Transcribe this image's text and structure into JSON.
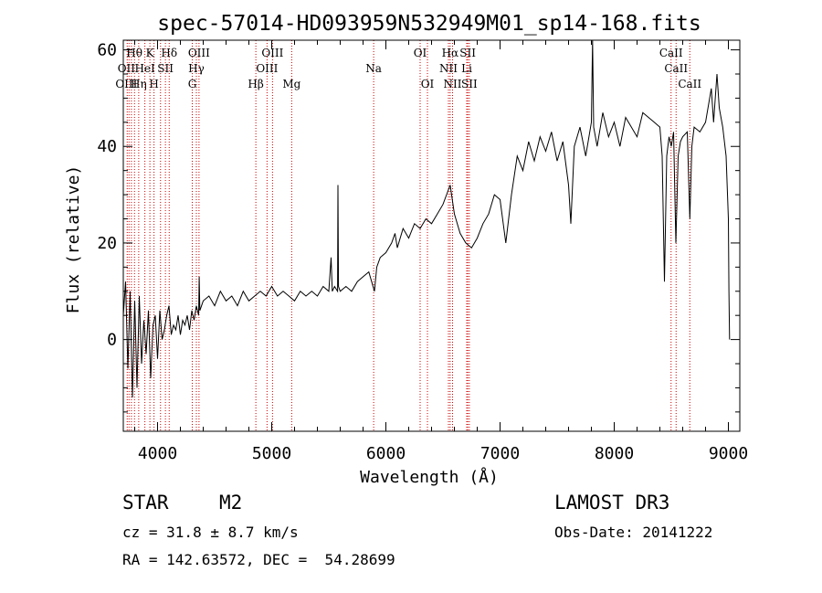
{
  "chart_data": {
    "type": "line",
    "title": "spec-57014-HD093959N532949M01_sp14-168.fits",
    "xlabel": "Wavelength (Å)",
    "ylabel": "Flux (relative)",
    "xlim": [
      3700,
      9100
    ],
    "ylim": [
      -19,
      62
    ],
    "xticks": [
      4000,
      5000,
      6000,
      7000,
      8000,
      9000
    ],
    "xtick_labels": [
      "4000",
      "5000",
      "6000",
      "7000",
      "8000",
      "9000"
    ],
    "yticks": [
      0,
      20,
      40,
      60
    ],
    "ytick_labels": [
      "0",
      "20",
      "40",
      "60"
    ],
    "series": [
      {
        "name": "flux",
        "color": "#000000",
        "points": [
          [
            3700,
            5
          ],
          [
            3720,
            12
          ],
          [
            3740,
            -6
          ],
          [
            3760,
            10
          ],
          [
            3780,
            -12
          ],
          [
            3800,
            8
          ],
          [
            3820,
            -10
          ],
          [
            3840,
            9
          ],
          [
            3860,
            -5
          ],
          [
            3880,
            4
          ],
          [
            3900,
            -3
          ],
          [
            3920,
            6
          ],
          [
            3940,
            -8
          ],
          [
            3960,
            3
          ],
          [
            3980,
            5
          ],
          [
            4000,
            -4
          ],
          [
            4020,
            6
          ],
          [
            4040,
            0
          ],
          [
            4060,
            2
          ],
          [
            4080,
            5
          ],
          [
            4100,
            7
          ],
          [
            4120,
            1
          ],
          [
            4140,
            3
          ],
          [
            4160,
            2
          ],
          [
            4180,
            5
          ],
          [
            4200,
            1
          ],
          [
            4220,
            4
          ],
          [
            4240,
            3
          ],
          [
            4260,
            5
          ],
          [
            4280,
            2
          ],
          [
            4300,
            6
          ],
          [
            4320,
            4
          ],
          [
            4340,
            7
          ],
          [
            4360,
            5
          ],
          [
            4365,
            13
          ],
          [
            4370,
            6
          ],
          [
            4400,
            8
          ],
          [
            4450,
            9
          ],
          [
            4500,
            7
          ],
          [
            4550,
            10
          ],
          [
            4600,
            8
          ],
          [
            4650,
            9
          ],
          [
            4700,
            7
          ],
          [
            4750,
            10
          ],
          [
            4800,
            8
          ],
          [
            4850,
            9
          ],
          [
            4900,
            10
          ],
          [
            4950,
            9
          ],
          [
            5000,
            11
          ],
          [
            5050,
            9
          ],
          [
            5100,
            10
          ],
          [
            5150,
            9
          ],
          [
            5200,
            8
          ],
          [
            5250,
            10
          ],
          [
            5300,
            9
          ],
          [
            5350,
            10
          ],
          [
            5400,
            9
          ],
          [
            5450,
            11
          ],
          [
            5500,
            10
          ],
          [
            5520,
            17
          ],
          [
            5530,
            10
          ],
          [
            5550,
            11
          ],
          [
            5577,
            10
          ],
          [
            5580,
            32
          ],
          [
            5585,
            11
          ],
          [
            5600,
            10
          ],
          [
            5650,
            11
          ],
          [
            5700,
            10
          ],
          [
            5750,
            12
          ],
          [
            5800,
            13
          ],
          [
            5850,
            14
          ],
          [
            5900,
            10
          ],
          [
            5920,
            15
          ],
          [
            5950,
            17
          ],
          [
            6000,
            18
          ],
          [
            6050,
            20
          ],
          [
            6080,
            22
          ],
          [
            6100,
            19
          ],
          [
            6150,
            23
          ],
          [
            6200,
            21
          ],
          [
            6250,
            24
          ],
          [
            6300,
            23
          ],
          [
            6350,
            25
          ],
          [
            6400,
            24
          ],
          [
            6450,
            26
          ],
          [
            6500,
            28
          ],
          [
            6563,
            32
          ],
          [
            6600,
            26
          ],
          [
            6650,
            22
          ],
          [
            6700,
            20
          ],
          [
            6750,
            19
          ],
          [
            6800,
            21
          ],
          [
            6850,
            24
          ],
          [
            6900,
            26
          ],
          [
            6950,
            30
          ],
          [
            7000,
            29
          ],
          [
            7050,
            20
          ],
          [
            7100,
            30
          ],
          [
            7150,
            38
          ],
          [
            7200,
            35
          ],
          [
            7250,
            41
          ],
          [
            7300,
            37
          ],
          [
            7350,
            42
          ],
          [
            7400,
            39
          ],
          [
            7450,
            43
          ],
          [
            7500,
            37
          ],
          [
            7550,
            41
          ],
          [
            7600,
            32
          ],
          [
            7620,
            24
          ],
          [
            7650,
            40
          ],
          [
            7700,
            44
          ],
          [
            7750,
            38
          ],
          [
            7800,
            45
          ],
          [
            7810,
            62
          ],
          [
            7820,
            44
          ],
          [
            7850,
            40
          ],
          [
            7900,
            47
          ],
          [
            7950,
            42
          ],
          [
            8000,
            45
          ],
          [
            8050,
            40
          ],
          [
            8100,
            46
          ],
          [
            8150,
            44
          ],
          [
            8200,
            42
          ],
          [
            8250,
            47
          ],
          [
            8300,
            46
          ],
          [
            8350,
            45
          ],
          [
            8400,
            44
          ],
          [
            8420,
            38
          ],
          [
            8440,
            12
          ],
          [
            8460,
            38
          ],
          [
            8480,
            42
          ],
          [
            8500,
            40
          ],
          [
            8520,
            43
          ],
          [
            8540,
            20
          ],
          [
            8560,
            38
          ],
          [
            8580,
            41
          ],
          [
            8600,
            42
          ],
          [
            8640,
            43
          ],
          [
            8662,
            25
          ],
          [
            8680,
            40
          ],
          [
            8700,
            44
          ],
          [
            8750,
            43
          ],
          [
            8800,
            45
          ],
          [
            8850,
            52
          ],
          [
            8870,
            45
          ],
          [
            8900,
            55
          ],
          [
            8920,
            48
          ],
          [
            8950,
            44
          ],
          [
            8980,
            38
          ],
          [
            9000,
            25
          ],
          [
            9005,
            10
          ],
          [
            9010,
            0
          ]
        ]
      }
    ],
    "reference_lines": {
      "color": "#cc0000",
      "style": "dotted",
      "wavelengths": [
        3734,
        3750,
        3771,
        3798,
        3835,
        3889,
        3933,
        3969,
        4026,
        4069,
        4102,
        4304,
        4340,
        4363,
        4861,
        4959,
        5007,
        5175,
        5893,
        6300,
        6364,
        6548,
        6563,
        6584,
        6708,
        6717,
        6731,
        8498,
        8542,
        8662
      ]
    },
    "line_labels": [
      {
        "text": "Hθ",
        "x": 3797,
        "row": 0
      },
      {
        "text": "K",
        "x": 3933,
        "row": 0
      },
      {
        "text": "Hδ",
        "x": 4102,
        "row": 0
      },
      {
        "text": "OIII",
        "x": 4363,
        "row": 0
      },
      {
        "text": "OIII",
        "x": 5007,
        "row": 0
      },
      {
        "text": "OI",
        "x": 6300,
        "row": 0
      },
      {
        "text": "Hα",
        "x": 6563,
        "row": 0
      },
      {
        "text": "SII",
        "x": 6717,
        "row": 0
      },
      {
        "text": "CaII",
        "x": 8498,
        "row": 0
      },
      {
        "text": "OII",
        "x": 3727,
        "row": 1
      },
      {
        "text": "HeI",
        "x": 3889,
        "row": 1
      },
      {
        "text": "SII",
        "x": 4069,
        "row": 1
      },
      {
        "text": "Hγ",
        "x": 4340,
        "row": 1
      },
      {
        "text": "OIII",
        "x": 4959,
        "row": 1
      },
      {
        "text": "Na",
        "x": 5893,
        "row": 1
      },
      {
        "text": "NII",
        "x": 6548,
        "row": 1
      },
      {
        "text": "Li",
        "x": 6708,
        "row": 1
      },
      {
        "text": "CaII",
        "x": 8542,
        "row": 1
      },
      {
        "text": "OIII",
        "x": 3727,
        "row": 2
      },
      {
        "text": "Hη",
        "x": 3835,
        "row": 2
      },
      {
        "text": "H",
        "x": 3969,
        "row": 2
      },
      {
        "text": "G",
        "x": 4304,
        "row": 2
      },
      {
        "text": "Hβ",
        "x": 4861,
        "row": 2
      },
      {
        "text": "Mg",
        "x": 5175,
        "row": 2
      },
      {
        "text": "OI",
        "x": 6364,
        "row": 2
      },
      {
        "text": "NII",
        "x": 6584,
        "row": 2
      },
      {
        "text": "SII",
        "x": 6731,
        "row": 2
      },
      {
        "text": "CaII",
        "x": 8662,
        "row": 2
      }
    ]
  },
  "info": {
    "class_label": "STAR",
    "subclass": "M2",
    "survey": "LAMOST DR3",
    "cz": "cz = 31.8 ± 8.7 km/s",
    "obs_date": "Obs-Date: 20141222",
    "coords": "RA = 142.63572, DEC =  54.28699"
  }
}
